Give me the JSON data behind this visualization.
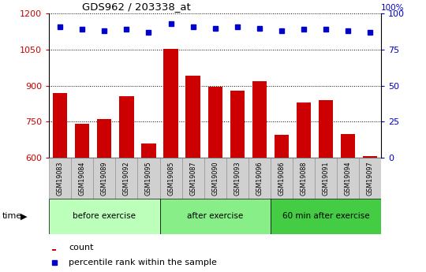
{
  "title": "GDS962 / 203338_at",
  "samples": [
    "GSM19083",
    "GSM19084",
    "GSM19089",
    "GSM19092",
    "GSM19095",
    "GSM19085",
    "GSM19087",
    "GSM19090",
    "GSM19093",
    "GSM19096",
    "GSM19086",
    "GSM19088",
    "GSM19091",
    "GSM19094",
    "GSM19097"
  ],
  "counts": [
    870,
    740,
    760,
    855,
    660,
    1052,
    940,
    895,
    880,
    920,
    695,
    830,
    840,
    700,
    608
  ],
  "percentiles": [
    91,
    89,
    88,
    89,
    87,
    93,
    91,
    90,
    91,
    90,
    88,
    89,
    89,
    88,
    87
  ],
  "groups": [
    {
      "label": "before exercise",
      "start": 0,
      "end": 5,
      "color": "#bbffbb"
    },
    {
      "label": "after exercise",
      "start": 5,
      "end": 10,
      "color": "#88ee88"
    },
    {
      "label": "60 min after exercise",
      "start": 10,
      "end": 15,
      "color": "#44cc44"
    }
  ],
  "bar_color": "#cc0000",
  "dot_color": "#0000cc",
  "ylim_left": [
    600,
    1200
  ],
  "yticks_left": [
    600,
    750,
    900,
    1050,
    1200
  ],
  "ylim_right": [
    0,
    100
  ],
  "yticks_right": [
    0,
    25,
    50,
    75,
    100
  ],
  "plot_bg": "#ffffff",
  "tick_color_left": "#cc0000",
  "tick_color_right": "#0000cc",
  "xtick_bg": "#d0d0d0",
  "time_label": "time",
  "legend_count": "count",
  "legend_pct": "percentile rank within the sample",
  "bar_width": 0.65
}
